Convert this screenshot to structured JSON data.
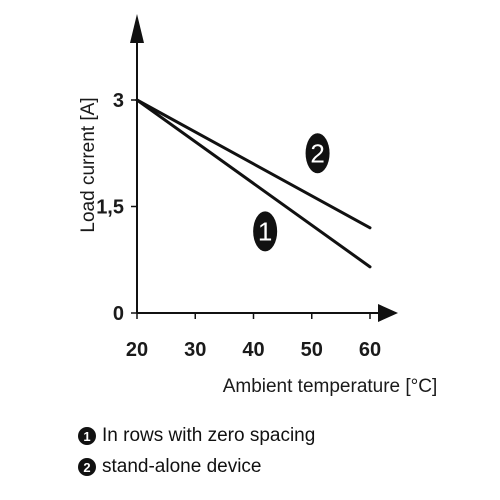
{
  "chart_data": {
    "type": "line",
    "xlabel": "Ambient temperature [°C]",
    "ylabel": "Load current [A]",
    "xlim": [
      20,
      60
    ],
    "ylim": [
      0,
      3
    ],
    "x_ticks": [
      "20",
      "30",
      "40",
      "50",
      "60"
    ],
    "y_ticks": [
      "0",
      "1,5",
      "3"
    ],
    "grid": false,
    "series": [
      {
        "marker": "1",
        "x": [
          20,
          60
        ],
        "y": [
          3,
          0.65
        ]
      },
      {
        "marker": "2",
        "x": [
          20,
          60
        ],
        "y": [
          3,
          1.2
        ]
      }
    ],
    "legend": [
      {
        "marker": "1",
        "label": "In rows with zero spacing"
      },
      {
        "marker": "2",
        "label": "stand-alone device"
      }
    ]
  }
}
